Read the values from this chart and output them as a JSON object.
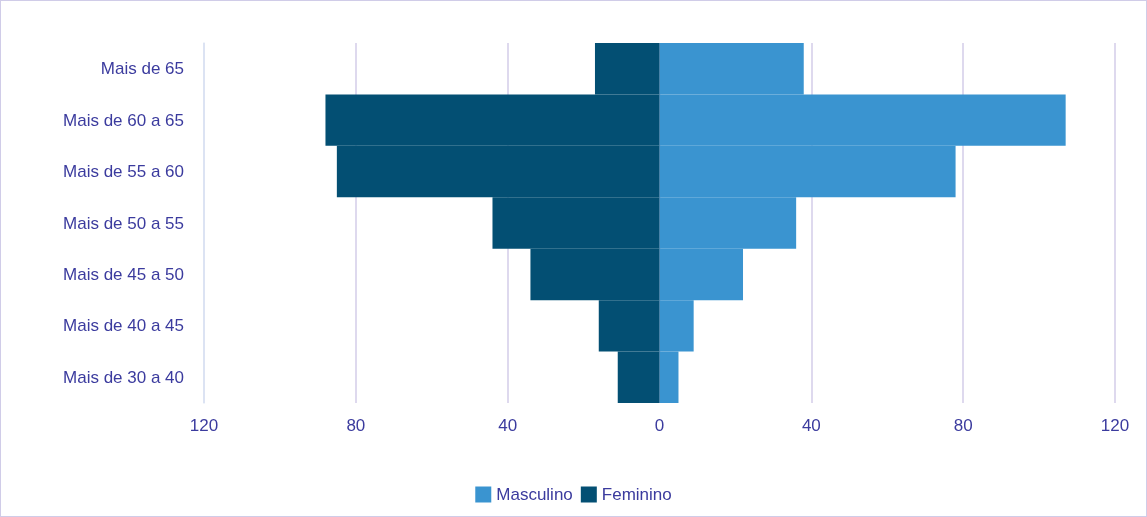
{
  "chart_data": {
    "type": "bar",
    "orientation": "horizontal",
    "categories": [
      "Mais de 65",
      "Mais de 60 a 65",
      "Mais de 55 a 60",
      "Mais de 50 a 55",
      "Mais de 45 a 50",
      "Mais de 40 a 45",
      "Mais de 30 a 40"
    ],
    "series": [
      {
        "name": "Masculino",
        "color": "#3a94d0",
        "values": [
          38,
          107,
          78,
          36,
          22,
          9,
          5
        ]
      },
      {
        "name": "Feminino",
        "color": "#034f73",
        "values": [
          -17,
          -88,
          -85,
          -44,
          -34,
          -16,
          -11
        ]
      }
    ],
    "xlim": [
      -120,
      120
    ],
    "xticks": [
      {
        "value": -120,
        "label": "120"
      },
      {
        "value": -80,
        "label": "80"
      },
      {
        "value": -40,
        "label": "40"
      },
      0,
      40,
      80,
      120
    ],
    "grid": "x",
    "legend": "bottom",
    "stacked": true
  }
}
